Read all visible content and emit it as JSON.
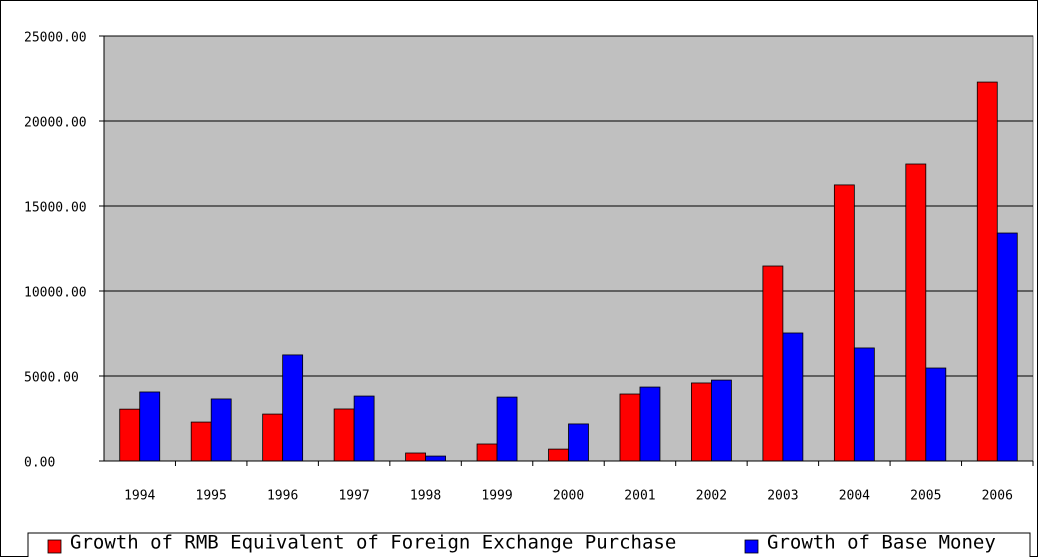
{
  "chart_data": {
    "type": "bar",
    "categories": [
      "1994",
      "1995",
      "1996",
      "1997",
      "1998",
      "1999",
      "2000",
      "2001",
      "2002",
      "2003",
      "2004",
      "2005",
      "2006"
    ],
    "series": [
      {
        "name": "Growth of RMB Equivalent of Foreign Exchange Purchase",
        "color": "#ff0000",
        "values": [
          3050,
          2290,
          2760,
          3060,
          470,
          1000,
          700,
          3940,
          4590,
          11470,
          16240,
          17470,
          22290
        ]
      },
      {
        "name": "Growth of Base Money",
        "color": "#0000ff",
        "values": [
          4060,
          3650,
          6240,
          3820,
          290,
          3760,
          2180,
          4350,
          4760,
          7530,
          6650,
          5470,
          13410
        ]
      }
    ],
    "ylim": [
      0,
      25000
    ],
    "yticks": [
      {
        "value": 0,
        "label": "0.00"
      },
      {
        "value": 5000,
        "label": "5000.00"
      },
      {
        "value": 10000,
        "label": "10000.00"
      },
      {
        "value": 15000,
        "label": "15000.00"
      },
      {
        "value": 20000,
        "label": "20000.00"
      },
      {
        "value": 25000,
        "label": "25000.00"
      }
    ],
    "grid": true,
    "legend": "bottom",
    "plot_background": "#c0c0c0"
  }
}
